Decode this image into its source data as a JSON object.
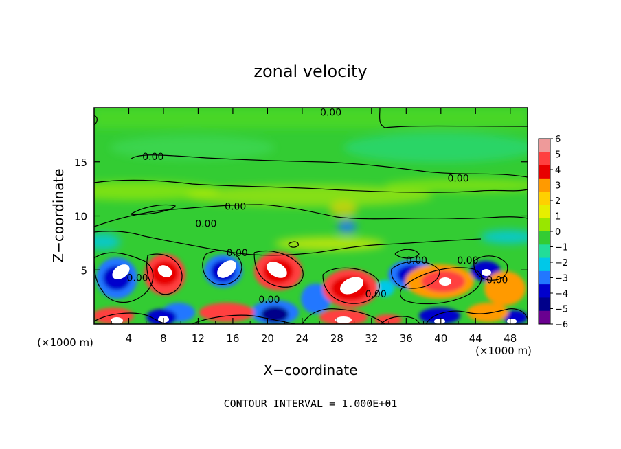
{
  "chart_data": {
    "type": "heatmap",
    "title": "zonal velocity",
    "xlabel": "X−coordinate",
    "ylabel": "Z−coordinate",
    "x_unit": "(×1000 m)",
    "z_unit": "(×1000 m)",
    "xlim": [
      0,
      50
    ],
    "ylim": [
      0,
      20
    ],
    "x_ticks": [
      4,
      8,
      12,
      16,
      20,
      24,
      28,
      32,
      36,
      40,
      44,
      48
    ],
    "y_ticks": [
      5,
      10,
      15
    ],
    "colorbar": {
      "min": -6,
      "max": 6,
      "labels": [
        "6",
        "5",
        "4",
        "3",
        "2",
        "1",
        "0",
        "−1",
        "−2",
        "−3",
        "−4",
        "−5",
        "−6"
      ],
      "colors": [
        "#ee9a9a",
        "#ff4040",
        "#e80000",
        "#ff9a00",
        "#ffd000",
        "#e6ee00",
        "#99e600",
        "#33cc33",
        "#22dd99",
        "#00c8e8",
        "#2277ff",
        "#0000cc",
        "#00008a",
        "#6a0090"
      ]
    },
    "contour_labels": [
      {
        "text": "0.00",
        "x": 27.3,
        "z": 19.6
      },
      {
        "text": "0.00",
        "x": 6.8,
        "z": 15.5
      },
      {
        "text": "0.00",
        "x": 42.0,
        "z": 13.5
      },
      {
        "text": "0.00",
        "x": 16.3,
        "z": 10.9
      },
      {
        "text": "0.00",
        "x": 12.9,
        "z": 9.3
      },
      {
        "text": "0.00",
        "x": 16.5,
        "z": 6.6
      },
      {
        "text": "0.00",
        "x": 5.0,
        "z": 4.3
      },
      {
        "text": "0.00",
        "x": 37.2,
        "z": 5.9
      },
      {
        "text": "0.00",
        "x": 43.1,
        "z": 5.9
      },
      {
        "text": "0.00",
        "x": 46.5,
        "z": 4.1
      },
      {
        "text": "0.00",
        "x": 20.2,
        "z": 2.3
      },
      {
        "text": "0.00",
        "x": 32.5,
        "z": 2.8
      }
    ],
    "footer": "CONTOUR INTERVAL = 1.000E+01"
  }
}
